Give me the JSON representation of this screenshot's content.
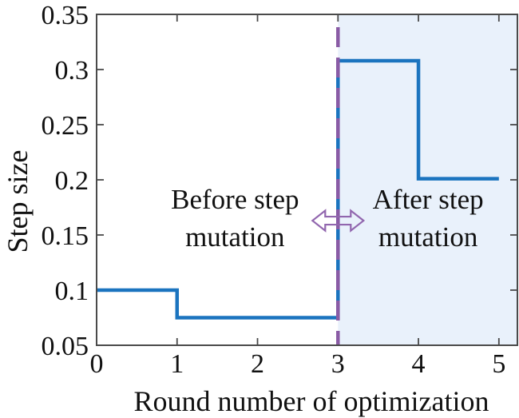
{
  "chart_data": {
    "type": "line",
    "line_style": "step-post",
    "title": "",
    "xlabel": "Round number of optimization",
    "ylabel": "Step size",
    "xlim": [
      0,
      5.23
    ],
    "ylim": [
      0.05,
      0.35
    ],
    "xticks": [
      0,
      1,
      2,
      3,
      4,
      5
    ],
    "xtick_labels": [
      "0",
      "1",
      "2",
      "3",
      "4",
      "5"
    ],
    "yticks": [
      0.05,
      0.1,
      0.15,
      0.2,
      0.25,
      0.3,
      0.35
    ],
    "ytick_labels": [
      "0.05",
      "0.1",
      "0.15",
      "0.2",
      "0.25",
      "0.3",
      "0.35"
    ],
    "grid": false,
    "legend": null,
    "series": [
      {
        "name": "step size",
        "color": "#1b74bf",
        "points": [
          [
            0,
            0.1
          ],
          [
            1,
            0.1
          ],
          [
            1,
            0.075
          ],
          [
            3,
            0.075
          ],
          [
            3,
            0.308
          ],
          [
            4,
            0.308
          ],
          [
            4,
            0.201
          ],
          [
            5,
            0.201
          ]
        ]
      }
    ],
    "step_values_by_round": {
      "0-1": 0.1,
      "1-3": 0.075,
      "3-4": 0.308,
      "4-5": 0.201
    },
    "mutation_line": {
      "x": 3,
      "color": "#8a5ba5",
      "style": "dashed"
    },
    "shaded_region": {
      "from_x": 3,
      "to_x": 5.23,
      "color": "#e9f1fb"
    },
    "annotations": [
      {
        "lines": [
          "Before step",
          "mutation"
        ],
        "x": 1.72,
        "y": 0.165,
        "side": "before"
      },
      {
        "lines": [
          "After step",
          "mutation"
        ],
        "x": 4.12,
        "y": 0.165,
        "side": "after"
      }
    ],
    "arrow": {
      "x": 3,
      "y": 0.163,
      "type": "double-headed-horizontal",
      "color": "#9166ae"
    }
  },
  "colors": {
    "background": "#ffffff",
    "axes": "#4a4a4a",
    "text": "#111111"
  }
}
